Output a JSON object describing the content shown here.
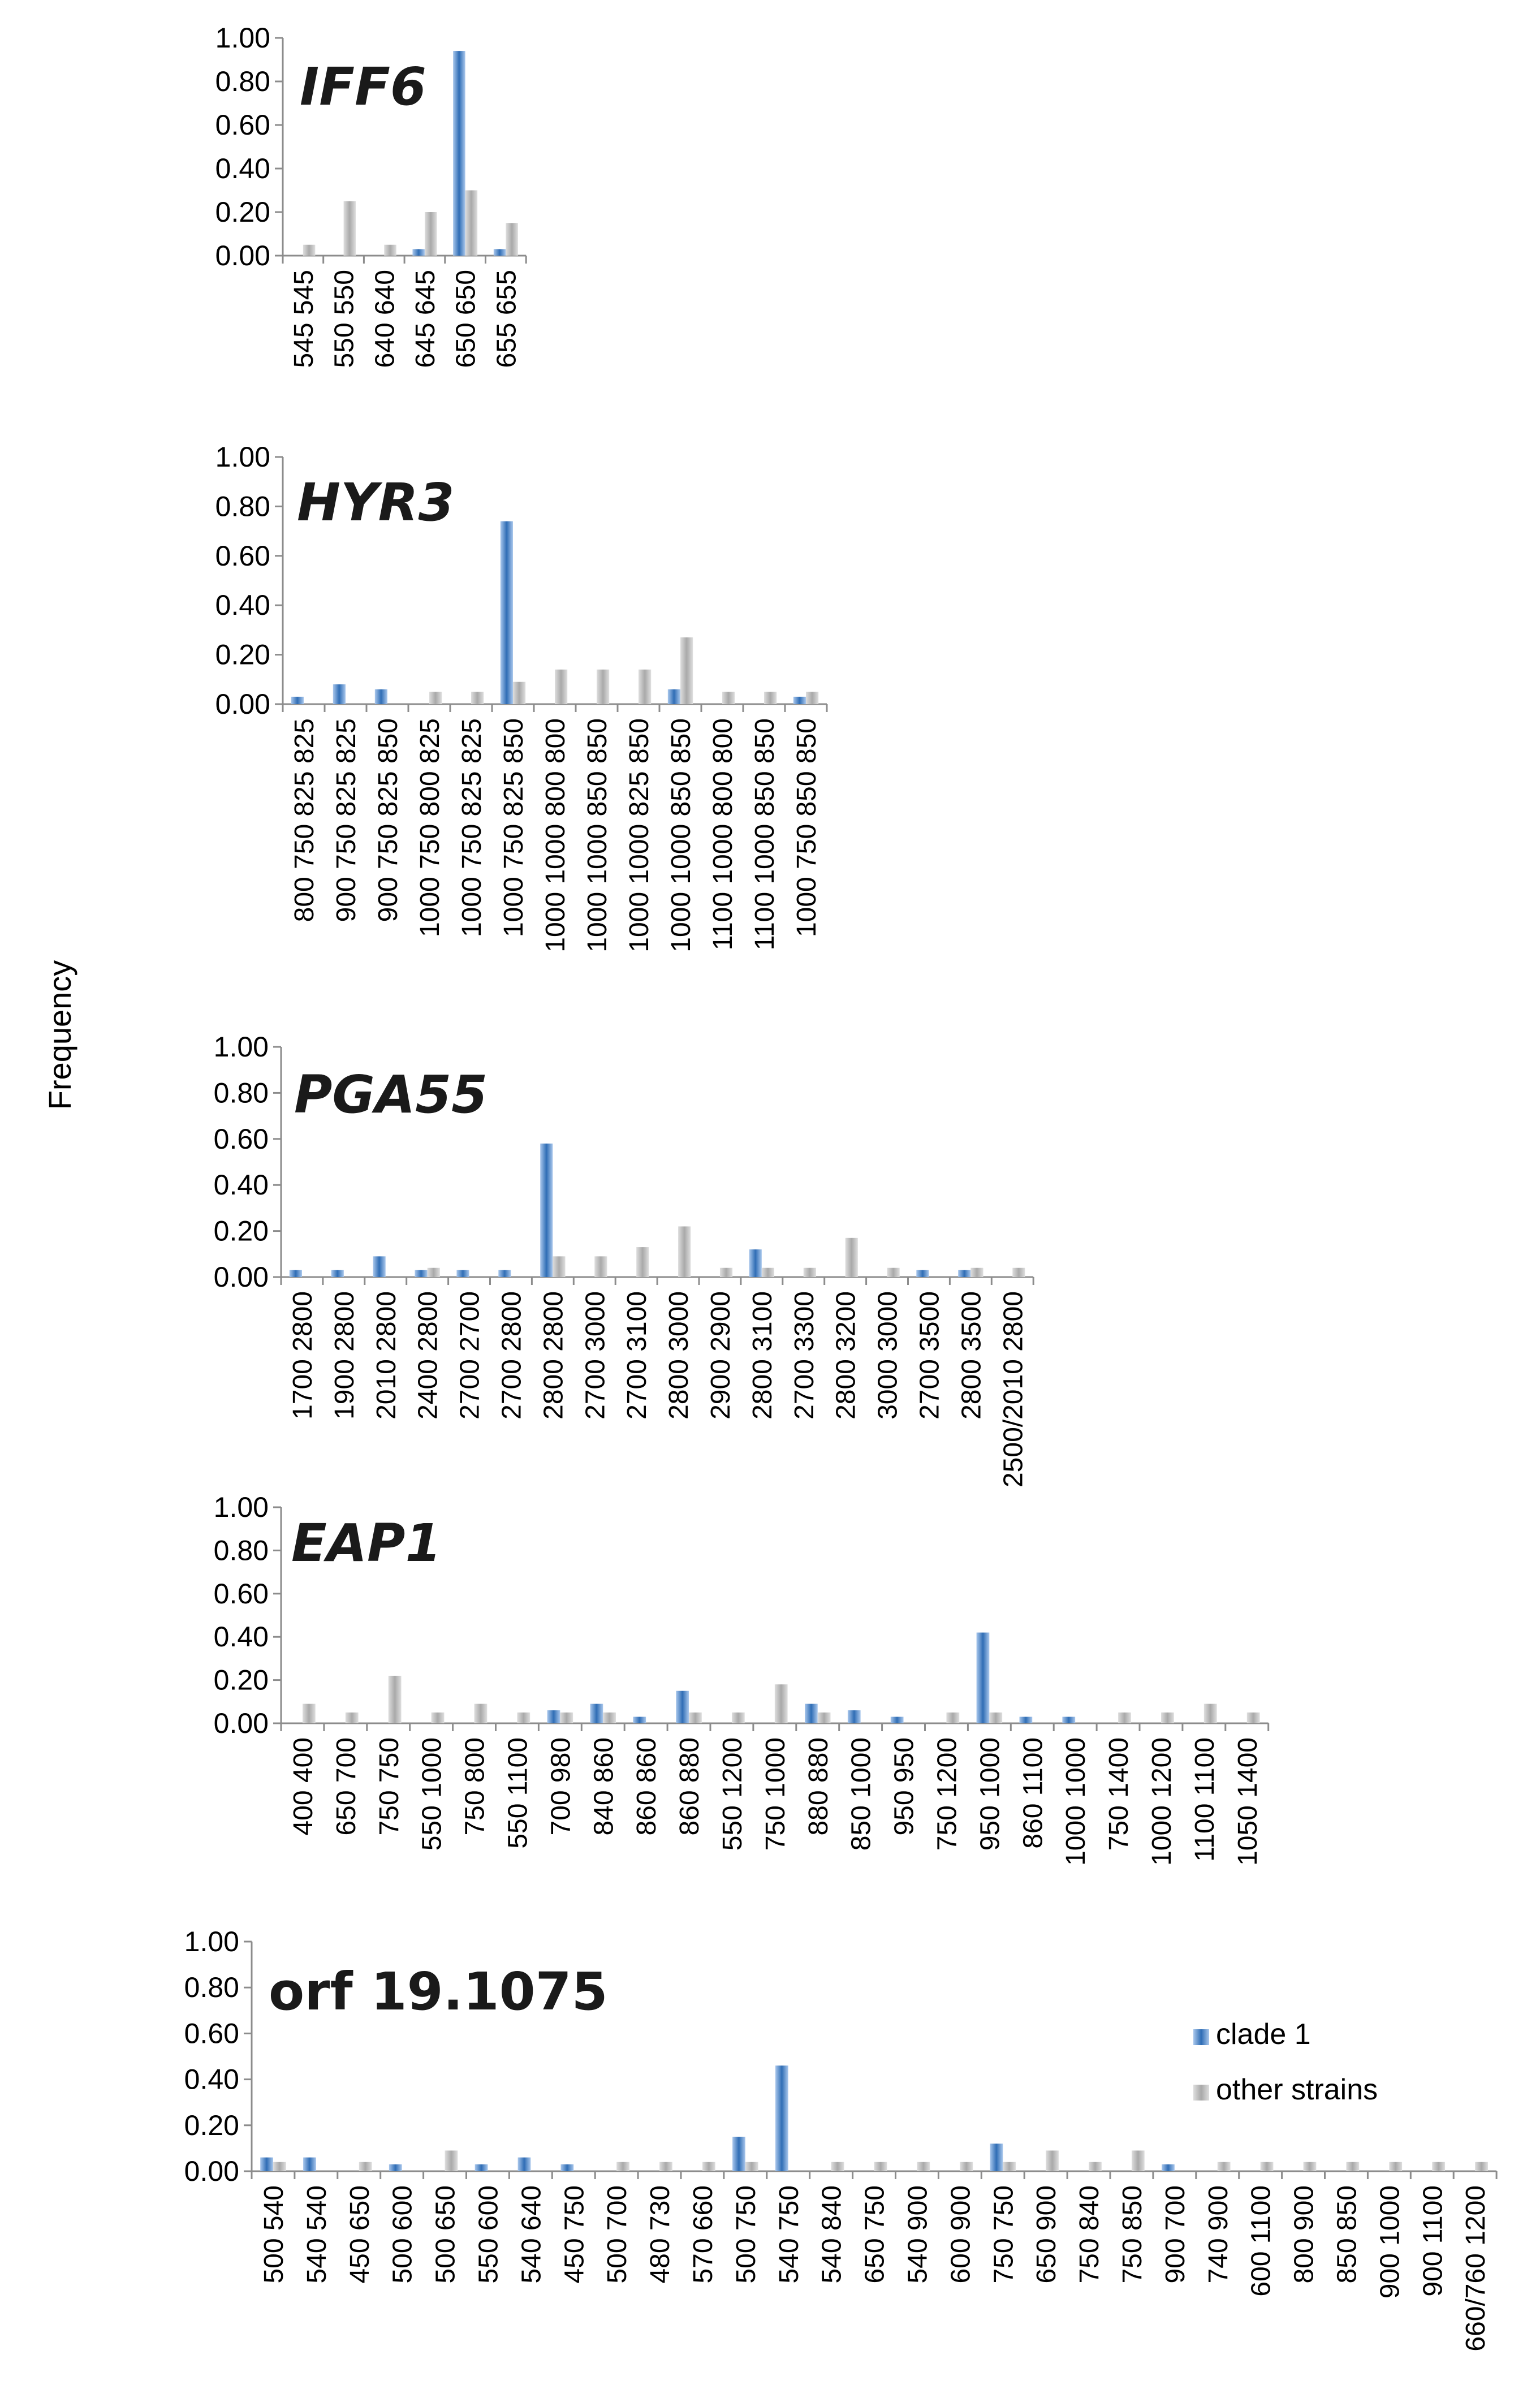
{
  "y_axis_label": "Frequency",
  "legend": {
    "clade1": "clade 1",
    "other": "other strains"
  },
  "colors": {
    "clade1_light": "#a9c7ec",
    "clade1_dark": "#2f6db5",
    "other_light": "#dedede",
    "other_dark": "#a9a9a9",
    "axis": "#8c8c8c"
  },
  "chart_data": [
    {
      "type": "bar",
      "title": "IFF6",
      "title_italic": true,
      "ylim": [
        0,
        1
      ],
      "yticks": [
        "0.00",
        "0.20",
        "0.40",
        "0.60",
        "0.80",
        "1.00"
      ],
      "categories": [
        "545 545",
        "550 550",
        "640 640",
        "645 645",
        "650 650",
        "655 655"
      ],
      "series": [
        {
          "name": "clade 1",
          "values": [
            0,
            0,
            0,
            0.03,
            0.94,
            0.03
          ]
        },
        {
          "name": "other strains",
          "values": [
            0.05,
            0.25,
            0.05,
            0.2,
            0.3,
            0.15
          ]
        }
      ]
    },
    {
      "type": "bar",
      "title": "HYR3",
      "title_italic": true,
      "ylim": [
        0,
        1
      ],
      "yticks": [
        "0.00",
        "0.20",
        "0.40",
        "0.60",
        "0.80",
        "1.00"
      ],
      "categories": [
        "800 750 825 825",
        "900 750 825 825",
        "900 750 825 850",
        "1000 750 800 825",
        "1000 750 825 825",
        "1000 750 825 850",
        "1000 1000 800 800",
        "1000 1000 850 850",
        "1000 1000 825 850",
        "1000 1000 850 850",
        "1100 1000 800 800",
        "1100 1000 850 850",
        "1000 750 850 850"
      ],
      "series": [
        {
          "name": "clade 1",
          "values": [
            0.03,
            0.08,
            0.06,
            0,
            0,
            0.74,
            0,
            0,
            0,
            0.06,
            0,
            0,
            0.03
          ]
        },
        {
          "name": "other strains",
          "values": [
            0,
            0,
            0,
            0.05,
            0.05,
            0.09,
            0.14,
            0.14,
            0.14,
            0.27,
            0.05,
            0.05,
            0.05
          ]
        }
      ]
    },
    {
      "type": "bar",
      "title": "PGA55",
      "title_italic": true,
      "ylim": [
        0,
        1
      ],
      "yticks": [
        "0.00",
        "0.20",
        "0.40",
        "0.60",
        "0.80",
        "1.00"
      ],
      "categories": [
        "1700 2800",
        "1900 2800",
        "2010 2800",
        "2400 2800",
        "2700 2700",
        "2700 2800",
        "2800 2800",
        "2700 3000",
        "2700 3100",
        "2800 3000",
        "2900 2900",
        "2800 3100",
        "2700 3300",
        "2800 3200",
        "3000 3000",
        "2700 3500",
        "2800 3500",
        "2500/2010 2800"
      ],
      "series": [
        {
          "name": "clade 1",
          "values": [
            0.03,
            0.03,
            0.09,
            0.03,
            0.03,
            0.03,
            0.58,
            0,
            0,
            0,
            0,
            0.12,
            0,
            0,
            0,
            0.03,
            0.03,
            0
          ]
        },
        {
          "name": "other strains",
          "values": [
            0,
            0,
            0,
            0.04,
            0,
            0,
            0.09,
            0.09,
            0.13,
            0.22,
            0.04,
            0.04,
            0.04,
            0.17,
            0.04,
            0,
            0.04,
            0.04
          ]
        }
      ]
    },
    {
      "type": "bar",
      "title": "EAP1",
      "title_italic": true,
      "ylim": [
        0,
        1
      ],
      "yticks": [
        "0.00",
        "0.20",
        "0.40",
        "0.60",
        "0.80",
        "1.00"
      ],
      "categories": [
        "400 400",
        "650 700",
        "750 750",
        "550 1000",
        "750 800",
        "550 1100",
        "700 980",
        "840 860",
        "860 860",
        "860 880",
        "550 1200",
        "750 1000",
        "880 880",
        "850 1000",
        "950 950",
        "750 1200",
        "950 1000",
        "860 1100",
        "1000 1000",
        "750 1400",
        "1000 1200",
        "1100 1100",
        "1050 1400"
      ],
      "series": [
        {
          "name": "clade 1",
          "values": [
            0,
            0,
            0,
            0,
            0,
            0,
            0.06,
            0.09,
            0.03,
            0.15,
            0,
            0,
            0.09,
            0.06,
            0.03,
            0,
            0.42,
            0.03,
            0.03,
            0,
            0,
            0,
            0
          ]
        },
        {
          "name": "other strains",
          "values": [
            0.09,
            0.05,
            0.22,
            0.05,
            0.09,
            0.05,
            0.05,
            0.05,
            0,
            0.05,
            0.05,
            0.18,
            0.05,
            0,
            0,
            0.05,
            0.05,
            0,
            0,
            0.05,
            0.05,
            0.09,
            0.05
          ]
        }
      ]
    },
    {
      "type": "bar",
      "title": "orf 19.1075",
      "title_italic": false,
      "ylim": [
        0,
        1
      ],
      "yticks": [
        "0.00",
        "0.20",
        "0.40",
        "0.60",
        "0.80",
        "1.00"
      ],
      "categories": [
        "500 540",
        "540 540",
        "450 650",
        "500 600",
        "500 650",
        "550 600",
        "540 640",
        "450 750",
        "500 700",
        "480 730",
        "570 660",
        "500 750",
        "540 750",
        "540 840",
        "650 750",
        "540 900",
        "600 900",
        "750 750",
        "650 900",
        "750 840",
        "750 850",
        "900 700",
        "740 900",
        "600 1100",
        "800 900",
        "850 850",
        "900 1000",
        "900 1100",
        "660/760 1200"
      ],
      "series": [
        {
          "name": "clade 1",
          "values": [
            0.06,
            0.06,
            0,
            0.03,
            0,
            0.03,
            0.06,
            0.03,
            0,
            0,
            0,
            0.15,
            0.46,
            0,
            0,
            0,
            0,
            0.12,
            0,
            0,
            0,
            0.03,
            0,
            0,
            0,
            0,
            0,
            0,
            0
          ]
        },
        {
          "name": "other strains",
          "values": [
            0.04,
            0,
            0.04,
            0,
            0.09,
            0,
            0,
            0,
            0.04,
            0.04,
            0.04,
            0.04,
            0,
            0.04,
            0.04,
            0.04,
            0.04,
            0.04,
            0.09,
            0.04,
            0.09,
            0,
            0.04,
            0.04,
            0.04,
            0.04,
            0.04,
            0.04,
            0.04
          ]
        }
      ]
    }
  ]
}
